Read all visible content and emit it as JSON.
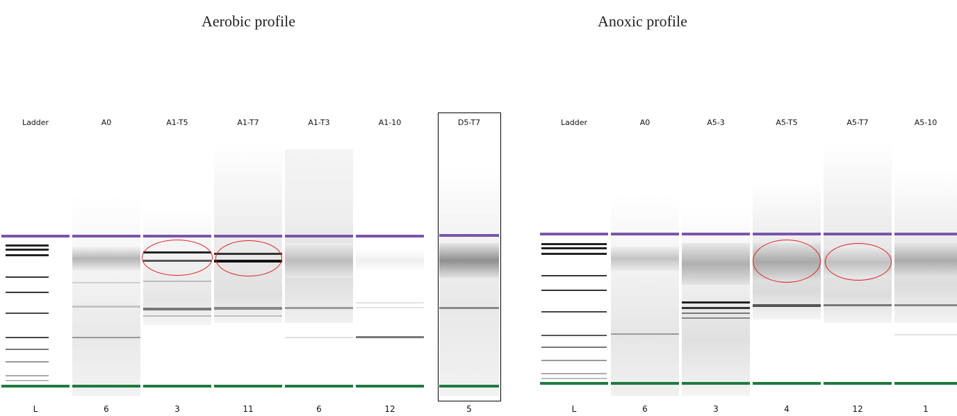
{
  "panels": [
    {
      "title": "Aerobic profile",
      "lanes": [
        {
          "label": "Ladder",
          "number": "L"
        },
        {
          "label": "A0",
          "number": "6"
        },
        {
          "label": "A1-T5",
          "number": "3"
        },
        {
          "label": "A1-T7",
          "number": "11"
        },
        {
          "label": "A1-T3",
          "number": "6"
        },
        {
          "label": "A1-10",
          "number": "12"
        },
        {
          "label": "D5-T7",
          "number": "5"
        }
      ]
    },
    {
      "title": "Anoxic profile",
      "lanes": [
        {
          "label": "Ladder",
          "number": "L"
        },
        {
          "label": "A0",
          "number": "6"
        },
        {
          "label": "A5-3",
          "number": "3"
        },
        {
          "label": "A5-T5",
          "number": "4"
        },
        {
          "label": "A5-T7",
          "number": "12"
        },
        {
          "label": "A5-10",
          "number": "1"
        }
      ]
    }
  ],
  "colors": {
    "upper_marker": "#7b55a9",
    "lower_marker": "#1f7a40",
    "highlight_circle": "#e02020"
  }
}
